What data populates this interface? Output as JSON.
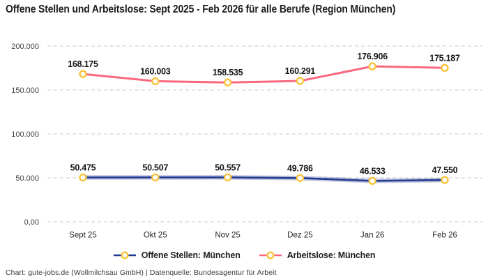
{
  "title": "Offene Stellen und Arbeitslose: Sept 2025 - Feb 2026 für alle Berufe (Region München)",
  "footer": "Chart: gute-jobs.de (Wollmilchsau GmbH) | Datenquelle: Bundesagentur für Arbeit",
  "colors": {
    "background": "#ffffff",
    "title_text": "#1d1d1d",
    "y_axis_text": "#3f3f3f",
    "x_axis_text": "#262626",
    "data_label_text": "#151515",
    "grid_line": "#c9c9c9",
    "open_positions_line": "#203a8f",
    "open_positions_glow": "rgba(32,58,143,0.28)",
    "unemployed_line": "#f9687e",
    "marker_stroke": "#f8c33a",
    "marker_fill": "#ffffff",
    "legend_text": "#1f1f1f",
    "footer_text": "#3a3a3a"
  },
  "chart_data": {
    "type": "line",
    "title": "Offene Stellen und Arbeitslose: Sept 2025 - Feb 2026 für alle Berufe (Region München)",
    "categories": [
      "Sept 25",
      "Okt 25",
      "Nov 25",
      "Dez 25",
      "Jan 26",
      "Feb 26"
    ],
    "series": [
      {
        "name": "Offene Stellen: München",
        "values": [
          50475,
          50507,
          50557,
          49786,
          46533,
          47550
        ],
        "point_labels": [
          "50.475",
          "50.507",
          "50.557",
          "49.786",
          "46.533",
          "47.550"
        ],
        "color_key": "open_positions_line",
        "glow_key": "open_positions_glow"
      },
      {
        "name": "Arbeitslose: München",
        "values": [
          168175,
          160003,
          158535,
          160291,
          176906,
          175187
        ],
        "point_labels": [
          "168.175",
          "160.003",
          "158.535",
          "160.291",
          "176.906",
          "175.187"
        ],
        "color_key": "unemployed_line"
      }
    ],
    "y_axis": {
      "range": [
        0,
        200000
      ],
      "ticks": [
        0,
        50000,
        100000,
        150000,
        200000
      ],
      "tick_labels": [
        "0,00",
        "50.000",
        "100.000",
        "150.000",
        "200.000"
      ]
    },
    "grid": "horizontal-dashed",
    "legend_position": "bottom",
    "marker_style": "circle-yellow-ring-white-fill"
  },
  "legend": {
    "items": [
      {
        "label": "Offene Stellen: München"
      },
      {
        "label": "Arbeitslose: München"
      }
    ]
  }
}
